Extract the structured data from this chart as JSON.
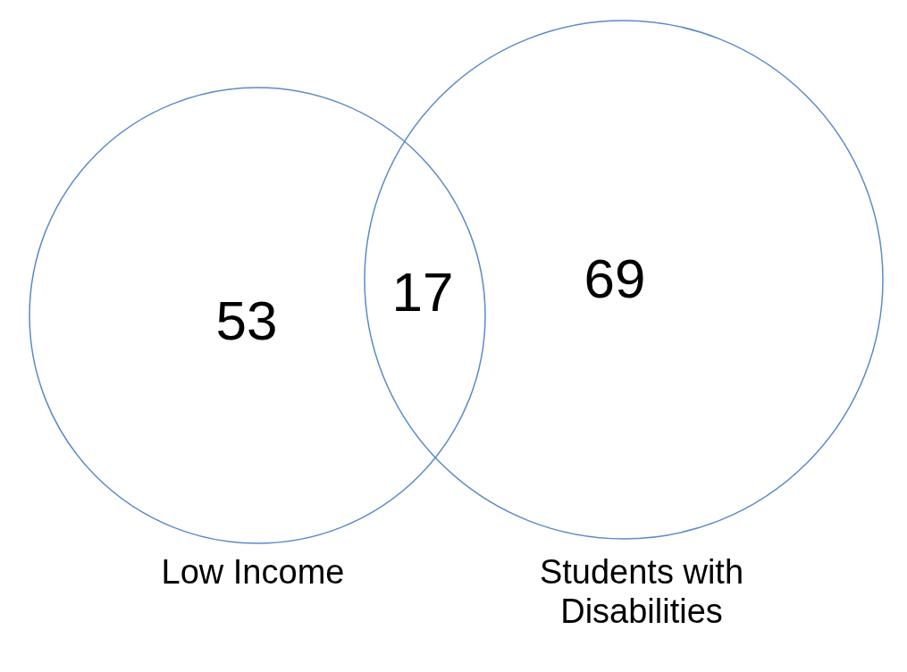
{
  "chart_data": {
    "type": "other",
    "categories": [
      "Low Income",
      null,
      "Students with Disabilities"
    ],
    "values": [
      53,
      17,
      69
    ],
    "color": "#5b8bc9",
    "data_labels": true
  }
}
